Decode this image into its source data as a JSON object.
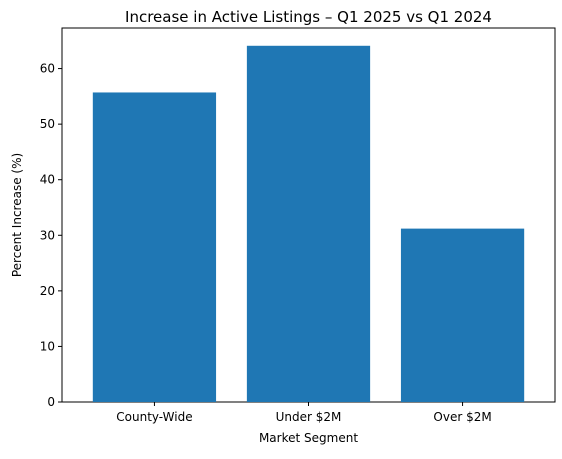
{
  "chart_data": {
    "type": "bar",
    "title": "Increase in Active Listings – Q1 2025 vs Q1 2024",
    "xlabel": "Market Segment",
    "ylabel": "Percent Increase (%)",
    "categories": [
      "County-Wide",
      "Under $2M",
      "Over $2M"
    ],
    "values": [
      55.7,
      64.1,
      31.2
    ],
    "ylim": [
      0,
      67.3
    ],
    "yticks": [
      0,
      10,
      20,
      30,
      40,
      50,
      60
    ],
    "grid": false,
    "legend": "none",
    "bar_color": "#1f77b4"
  }
}
